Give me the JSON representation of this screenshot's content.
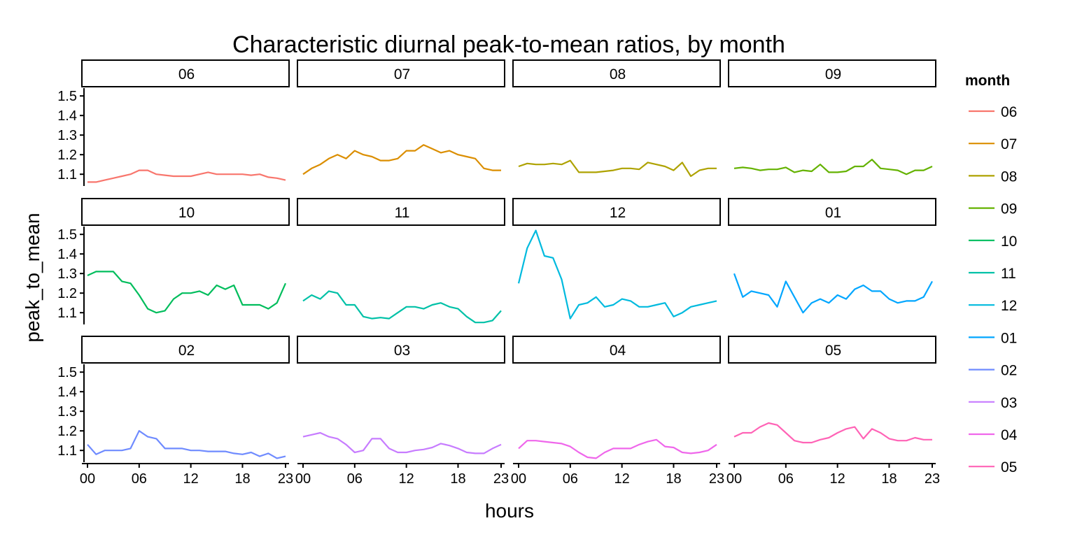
{
  "chart_data": {
    "type": "line",
    "title": "Characteristic diurnal peak-to-mean ratios, by month",
    "xlabel": "hours",
    "ylabel": "peak_to_mean",
    "x_ticks": [
      "00",
      "06",
      "12",
      "18",
      "23"
    ],
    "y_ticks": [
      "1.1",
      "1.2",
      "1.3",
      "1.4",
      "1.5"
    ],
    "xlim": [
      0,
      23
    ],
    "ylim": [
      1.04,
      1.54
    ],
    "grid": false,
    "legend": {
      "title": "month",
      "position": "right"
    },
    "series": [
      {
        "name": "06",
        "color": "#F8766D",
        "values": [
          1.06,
          1.06,
          1.07,
          1.08,
          1.09,
          1.1,
          1.12,
          1.12,
          1.1,
          1.095,
          1.09,
          1.09,
          1.09,
          1.1,
          1.11,
          1.1,
          1.1,
          1.1,
          1.1,
          1.095,
          1.1,
          1.085,
          1.08,
          1.07
        ]
      },
      {
        "name": "07",
        "color": "#DB8E00",
        "values": [
          1.1,
          1.13,
          1.15,
          1.18,
          1.2,
          1.18,
          1.22,
          1.2,
          1.19,
          1.17,
          1.17,
          1.18,
          1.22,
          1.22,
          1.25,
          1.23,
          1.21,
          1.22,
          1.2,
          1.19,
          1.18,
          1.13,
          1.12,
          1.12
        ]
      },
      {
        "name": "08",
        "color": "#AEA200",
        "values": [
          1.14,
          1.155,
          1.15,
          1.15,
          1.155,
          1.15,
          1.17,
          1.11,
          1.11,
          1.11,
          1.115,
          1.12,
          1.13,
          1.13,
          1.125,
          1.16,
          1.15,
          1.14,
          1.12,
          1.16,
          1.09,
          1.12,
          1.13,
          1.13
        ]
      },
      {
        "name": "09",
        "color": "#64B200",
        "values": [
          1.13,
          1.135,
          1.13,
          1.12,
          1.125,
          1.125,
          1.135,
          1.11,
          1.12,
          1.115,
          1.15,
          1.11,
          1.11,
          1.115,
          1.14,
          1.14,
          1.175,
          1.13,
          1.125,
          1.12,
          1.1,
          1.12,
          1.12,
          1.14
        ]
      },
      {
        "name": "10",
        "color": "#00BD5C",
        "values": [
          1.29,
          1.31,
          1.31,
          1.31,
          1.26,
          1.25,
          1.19,
          1.12,
          1.1,
          1.11,
          1.17,
          1.2,
          1.2,
          1.21,
          1.19,
          1.24,
          1.22,
          1.24,
          1.14,
          1.14,
          1.14,
          1.12,
          1.15,
          1.25
        ]
      },
      {
        "name": "11",
        "color": "#00C1A7",
        "values": [
          1.16,
          1.19,
          1.17,
          1.21,
          1.2,
          1.14,
          1.14,
          1.08,
          1.07,
          1.075,
          1.07,
          1.1,
          1.13,
          1.13,
          1.12,
          1.14,
          1.15,
          1.13,
          1.12,
          1.08,
          1.05,
          1.05,
          1.06,
          1.11
        ]
      },
      {
        "name": "12",
        "color": "#00BADE",
        "values": [
          1.25,
          1.43,
          1.52,
          1.39,
          1.38,
          1.27,
          1.07,
          1.14,
          1.15,
          1.18,
          1.13,
          1.14,
          1.17,
          1.16,
          1.13,
          1.13,
          1.14,
          1.15,
          1.08,
          1.1,
          1.13,
          1.14,
          1.15,
          1.16
        ]
      },
      {
        "name": "01",
        "color": "#00A6FF",
        "values": [
          1.3,
          1.18,
          1.21,
          1.2,
          1.19,
          1.13,
          1.26,
          1.18,
          1.1,
          1.15,
          1.17,
          1.15,
          1.19,
          1.17,
          1.22,
          1.24,
          1.21,
          1.21,
          1.17,
          1.15,
          1.16,
          1.16,
          1.18,
          1.26
        ]
      },
      {
        "name": "02",
        "color": "#6F8BFF",
        "values": [
          1.13,
          1.08,
          1.1,
          1.1,
          1.1,
          1.11,
          1.2,
          1.17,
          1.16,
          1.11,
          1.11,
          1.11,
          1.1,
          1.1,
          1.095,
          1.095,
          1.095,
          1.085,
          1.08,
          1.09,
          1.07,
          1.085,
          1.06,
          1.07
        ]
      },
      {
        "name": "03",
        "color": "#C77CFF",
        "values": [
          1.17,
          1.18,
          1.19,
          1.17,
          1.16,
          1.13,
          1.09,
          1.1,
          1.16,
          1.16,
          1.11,
          1.09,
          1.09,
          1.1,
          1.105,
          1.115,
          1.135,
          1.125,
          1.11,
          1.09,
          1.085,
          1.085,
          1.11,
          1.13
        ]
      },
      {
        "name": "04",
        "color": "#EF67EB",
        "values": [
          1.11,
          1.15,
          1.15,
          1.145,
          1.14,
          1.135,
          1.12,
          1.09,
          1.065,
          1.06,
          1.09,
          1.11,
          1.11,
          1.11,
          1.13,
          1.145,
          1.155,
          1.12,
          1.115,
          1.09,
          1.085,
          1.09,
          1.1,
          1.13
        ]
      },
      {
        "name": "05",
        "color": "#FF63B6",
        "values": [
          1.17,
          1.19,
          1.19,
          1.22,
          1.24,
          1.23,
          1.19,
          1.15,
          1.14,
          1.14,
          1.155,
          1.165,
          1.19,
          1.21,
          1.22,
          1.16,
          1.21,
          1.19,
          1.16,
          1.15,
          1.15,
          1.165,
          1.155,
          1.155
        ]
      }
    ]
  }
}
